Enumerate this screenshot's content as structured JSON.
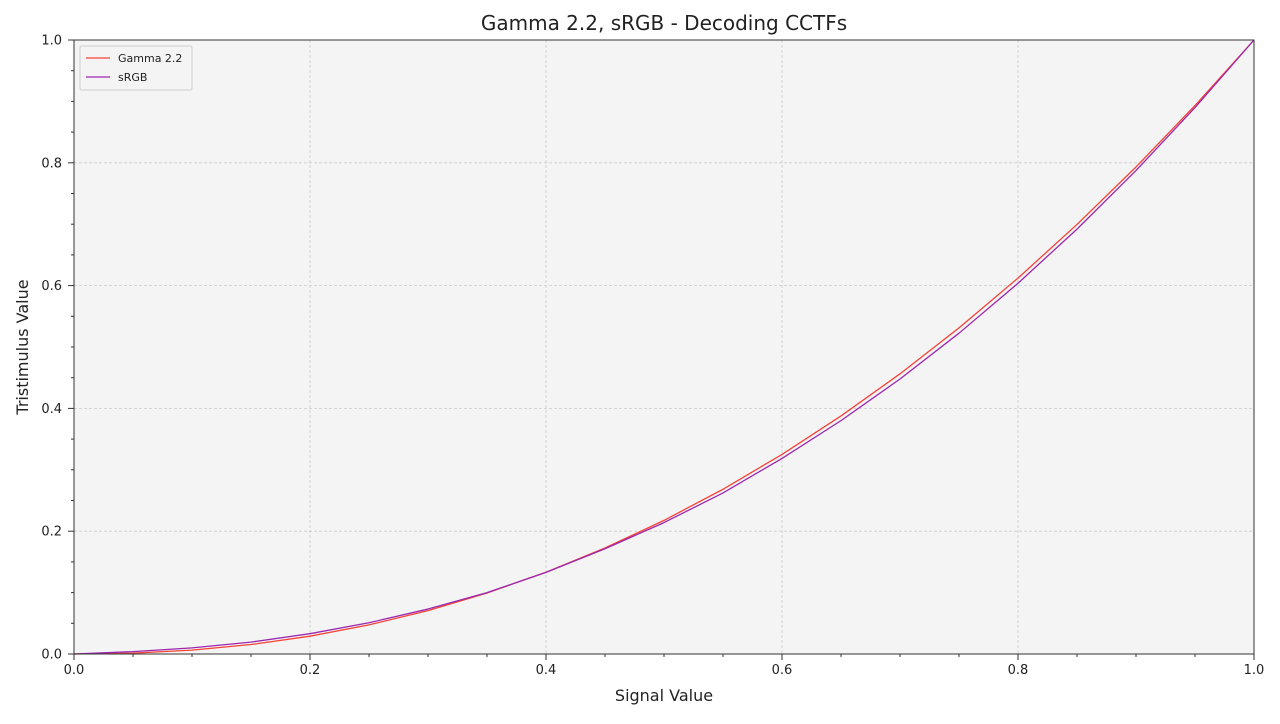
{
  "chart_data": {
    "type": "line",
    "title": "Gamma 2.2, sRGB - Decoding CCTFs",
    "xlabel": "Signal Value",
    "ylabel": "Tristimulus Value",
    "xlim": [
      0,
      1
    ],
    "ylim": [
      0,
      1
    ],
    "x_ticks": [
      "0.0",
      "0.2",
      "0.4",
      "0.6",
      "0.8",
      "1.0"
    ],
    "y_ticks": [
      "0.0",
      "0.2",
      "0.4",
      "0.6",
      "0.8",
      "1.0"
    ],
    "grid": true,
    "legend_position": "top-left",
    "series": [
      {
        "name": "Gamma 2.2",
        "color": "#f44336",
        "x": [
          0.0,
          0.05,
          0.1,
          0.15,
          0.2,
          0.25,
          0.3,
          0.35,
          0.4,
          0.45,
          0.5,
          0.55,
          0.6,
          0.65,
          0.7,
          0.75,
          0.8,
          0.85,
          0.9,
          0.95,
          1.0
        ],
        "y": [
          0.0,
          0.0014,
          0.0063,
          0.0154,
          0.029,
          0.0474,
          0.0707,
          0.0993,
          0.1332,
          0.1726,
          0.2176,
          0.2683,
          0.325,
          0.3877,
          0.4563,
          0.5312,
          0.6122,
          0.6996,
          0.7932,
          0.8933,
          1.0
        ]
      },
      {
        "name": "sRGB",
        "color": "#9c27b0",
        "x": [
          0.0,
          0.05,
          0.1,
          0.15,
          0.2,
          0.25,
          0.3,
          0.35,
          0.4,
          0.45,
          0.5,
          0.55,
          0.6,
          0.65,
          0.7,
          0.75,
          0.8,
          0.85,
          0.9,
          0.95,
          1.0
        ],
        "y": [
          0.0,
          0.0039,
          0.01,
          0.0194,
          0.0331,
          0.0509,
          0.0732,
          0.0999,
          0.1329,
          0.1714,
          0.214,
          0.2623,
          0.3185,
          0.3801,
          0.4479,
          0.5225,
          0.6038,
          0.692,
          0.7874,
          0.89,
          1.0
        ]
      }
    ]
  }
}
